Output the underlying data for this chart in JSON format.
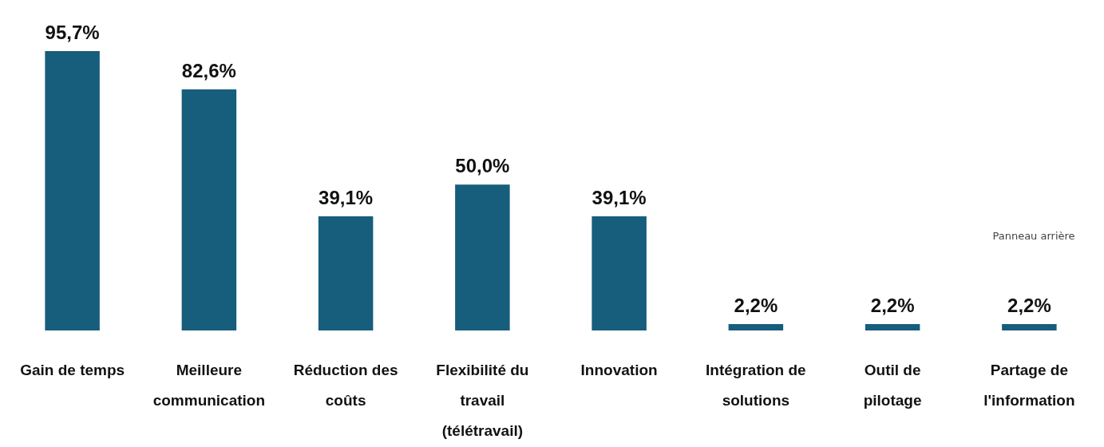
{
  "chart_data": {
    "type": "bar",
    "categories": [
      "Gain de temps",
      "Meilleure communication",
      "Réduction des coûts",
      "Flexibilité du travail (télétravail)",
      "Innovation",
      "Intégration de solutions",
      "Outil de pilotage",
      "Partage de l'information"
    ],
    "values": [
      95.7,
      82.6,
      39.1,
      50.0,
      39.1,
      2.2,
      2.2,
      2.2
    ],
    "value_labels": [
      "95,7%",
      "82,6%",
      "39,1%",
      "50,0%",
      "39,1%",
      "2,2%",
      "2,2%",
      "2,2%"
    ],
    "color": "#175d7c",
    "annotations": [
      "Panneau arrière"
    ]
  }
}
